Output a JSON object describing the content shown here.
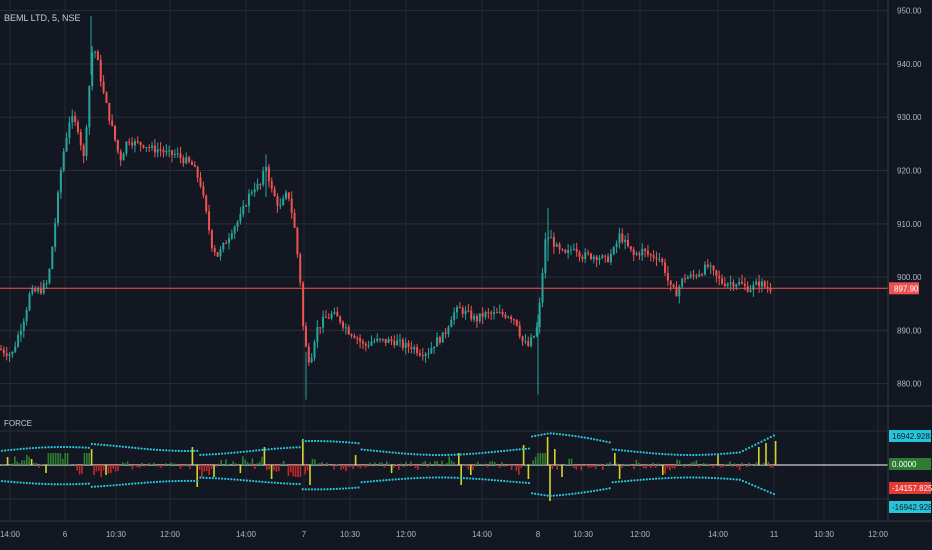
{
  "header": {
    "symbol_title": "BEML LTD, 5, NSE"
  },
  "indicator": {
    "name": "FORCE"
  },
  "price_axis": {
    "labels": [
      "950.00",
      "940.00",
      "930.00",
      "920.00",
      "910.00",
      "900.00",
      "890.00",
      "880.00"
    ],
    "current_price": "897.90"
  },
  "force_axis": {
    "upper": "16942.9283",
    "zero": "0.0000",
    "current": "-14157.8250",
    "lower": "-16942.9283"
  },
  "time_axis": {
    "labels": [
      "14:00",
      "6",
      "10:30",
      "12:00",
      "14:00",
      "7",
      "10:30",
      "12:00",
      "14:00",
      "8",
      "10:30",
      "12:00",
      "14:00",
      "11",
      "10:30",
      "12:00"
    ]
  },
  "colors": {
    "background": "#131722",
    "bull": "#26a69a",
    "bear": "#ef5350",
    "price_line": "#ef5350",
    "force_positive": "#2e7d32",
    "force_negative": "#c62828",
    "force_spike": "#d4d42c",
    "bands": "#26c6da"
  },
  "chart_data": [
    {
      "type": "candlestick",
      "title": "BEML LTD, 5, NSE",
      "ylim": [
        876,
        952
      ],
      "x_ticks": [
        "14:00",
        "6",
        "10:30",
        "12:00",
        "14:00",
        "7",
        "10:30",
        "12:00",
        "14:00",
        "8",
        "10:30",
        "12:00",
        "14:00",
        "11",
        "10:30",
        "12:00"
      ],
      "last_price": 897.9,
      "path": [
        [
          0,
          886.5
        ],
        [
          5,
          886
        ],
        [
          12,
          885.5
        ],
        [
          18,
          889
        ],
        [
          25,
          893
        ],
        [
          30,
          897
        ],
        [
          40,
          897.5
        ],
        [
          48,
          899
        ],
        [
          55,
          910
        ],
        [
          62,
          922
        ],
        [
          70,
          930
        ],
        [
          78,
          928
        ],
        [
          84,
          922
        ],
        [
          88,
          933
        ],
        [
          93,
          944
        ],
        [
          98,
          940
        ],
        [
          104,
          934
        ],
        [
          112,
          928
        ],
        [
          120,
          922
        ],
        [
          128,
          926
        ],
        [
          136,
          925
        ],
        [
          144,
          925
        ],
        [
          152,
          924
        ],
        [
          160,
          924
        ],
        [
          168,
          923
        ],
        [
          176,
          923
        ],
        [
          184,
          922
        ],
        [
          192,
          921
        ],
        [
          200,
          918
        ],
        [
          206,
          912
        ],
        [
          212,
          906
        ],
        [
          218,
          904
        ],
        [
          224,
          906
        ],
        [
          232,
          909
        ],
        [
          240,
          911
        ],
        [
          248,
          915
        ],
        [
          254,
          917
        ],
        [
          260,
          917
        ],
        [
          266,
          921
        ],
        [
          272,
          916
        ],
        [
          280,
          913
        ],
        [
          288,
          916
        ],
        [
          294,
          910
        ],
        [
          300,
          900
        ],
        [
          304,
          888
        ],
        [
          310,
          884
        ],
        [
          316,
          890
        ],
        [
          324,
          892
        ],
        [
          332,
          893
        ],
        [
          340,
          892
        ],
        [
          348,
          890
        ],
        [
          356,
          889
        ],
        [
          364,
          887
        ],
        [
          372,
          888
        ],
        [
          380,
          888
        ],
        [
          388,
          888
        ],
        [
          396,
          888
        ],
        [
          404,
          887
        ],
        [
          412,
          887
        ],
        [
          420,
          886
        ],
        [
          428,
          886
        ],
        [
          436,
          888
        ],
        [
          444,
          889
        ],
        [
          452,
          893
        ],
        [
          460,
          894
        ],
        [
          468,
          893
        ],
        [
          476,
          892
        ],
        [
          484,
          893
        ],
        [
          492,
          893
        ],
        [
          500,
          893
        ],
        [
          508,
          893
        ],
        [
          516,
          892
        ],
        [
          522,
          888
        ],
        [
          528,
          887
        ],
        [
          534,
          889
        ],
        [
          538,
          891
        ],
        [
          542,
          900
        ],
        [
          546,
          908
        ],
        [
          552,
          907
        ],
        [
          558,
          905
        ],
        [
          566,
          904
        ],
        [
          574,
          906
        ],
        [
          582,
          904
        ],
        [
          590,
          904
        ],
        [
          598,
          904
        ],
        [
          606,
          903
        ],
        [
          614,
          905
        ],
        [
          620,
          908
        ],
        [
          626,
          906
        ],
        [
          634,
          904
        ],
        [
          642,
          905
        ],
        [
          650,
          904
        ],
        [
          658,
          904
        ],
        [
          664,
          902
        ],
        [
          670,
          898
        ],
        [
          676,
          897
        ],
        [
          684,
          900
        ],
        [
          692,
          900
        ],
        [
          700,
          901
        ],
        [
          708,
          902
        ],
        [
          716,
          900
        ],
        [
          722,
          899
        ],
        [
          730,
          899
        ],
        [
          738,
          899
        ],
        [
          746,
          898
        ],
        [
          752,
          898
        ],
        [
          760,
          899
        ],
        [
          766,
          898
        ],
        [
          772,
          897.9
        ]
      ]
    },
    {
      "type": "bar",
      "title": "FORCE",
      "ylim": [
        -16942.9283,
        16942.9283
      ],
      "last_value": -14157.825
    }
  ]
}
